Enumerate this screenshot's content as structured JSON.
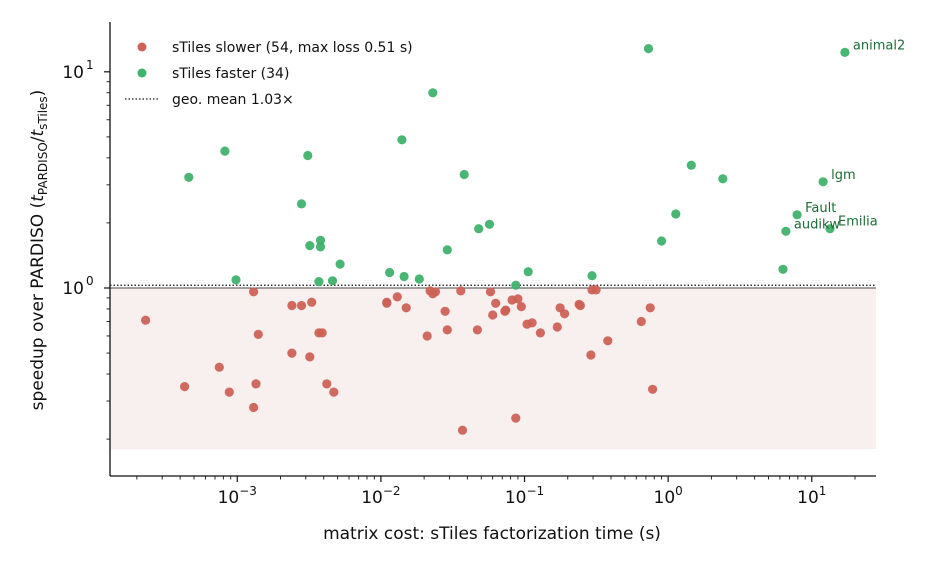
{
  "chart_data": {
    "type": "scatter",
    "x_scale": "log",
    "y_scale": "log",
    "xlabel": "matrix cost: sTiles factorization time (s)",
    "ylabel_main": "speedup over PARDISO (",
    "ylabel_t1": "t",
    "ylabel_sub1": "PARDISO",
    "ylabel_slash": "/",
    "ylabel_t2": "t",
    "ylabel_sub2": "sTiles",
    "ylabel_close": ")",
    "xlim": [
      0.00013,
      28
    ],
    "ylim": [
      0.135,
      17
    ],
    "x_ticks": [
      {
        "value": 0.001,
        "base": "10",
        "exp": "−3"
      },
      {
        "value": 0.01,
        "base": "10",
        "exp": "−2"
      },
      {
        "value": 0.1,
        "base": "10",
        "exp": "−1"
      },
      {
        "value": 1,
        "base": "10",
        "exp": "0"
      },
      {
        "value": 10,
        "base": "10",
        "exp": "1"
      }
    ],
    "y_ticks": [
      {
        "value": 1,
        "base": "10",
        "exp": "0"
      },
      {
        "value": 10,
        "base": "10",
        "exp": "1"
      }
    ],
    "reference_line": {
      "value": 1.03,
      "label": "geo. mean 1.03×",
      "style": "dotted"
    },
    "baseline": 1,
    "shaded_region": {
      "y_from": 0.18,
      "y_to": 1.0,
      "color": "#f8efef"
    },
    "legend_position": "top-left",
    "series": [
      {
        "name": "sTiles slower (54, max loss 0.51 s)",
        "color": "#cd6155",
        "points": [
          [
            0.00023,
            0.71
          ],
          [
            0.00043,
            0.35
          ],
          [
            0.00075,
            0.43
          ],
          [
            0.00088,
            0.33
          ],
          [
            0.0013,
            0.96
          ],
          [
            0.0013,
            0.28
          ],
          [
            0.00135,
            0.36
          ],
          [
            0.0014,
            0.61
          ],
          [
            0.0024,
            0.5
          ],
          [
            0.0024,
            0.83
          ],
          [
            0.0028,
            0.83
          ],
          [
            0.0032,
            0.48
          ],
          [
            0.0033,
            0.86
          ],
          [
            0.0037,
            0.62
          ],
          [
            0.0039,
            0.62
          ],
          [
            0.0042,
            0.36
          ],
          [
            0.0047,
            0.33
          ],
          [
            0.011,
            0.86
          ],
          [
            0.011,
            0.85
          ],
          [
            0.013,
            0.91
          ],
          [
            0.015,
            0.81
          ],
          [
            0.021,
            0.6
          ],
          [
            0.022,
            0.97
          ],
          [
            0.023,
            0.94
          ],
          [
            0.024,
            0.96
          ],
          [
            0.028,
            0.78
          ],
          [
            0.029,
            0.64
          ],
          [
            0.036,
            0.97
          ],
          [
            0.037,
            0.22
          ],
          [
            0.047,
            0.64
          ],
          [
            0.058,
            0.96
          ],
          [
            0.06,
            0.75
          ],
          [
            0.063,
            0.85
          ],
          [
            0.073,
            0.78
          ],
          [
            0.074,
            0.79
          ],
          [
            0.082,
            0.88
          ],
          [
            0.087,
            0.25
          ],
          [
            0.09,
            0.89
          ],
          [
            0.095,
            0.82
          ],
          [
            0.104,
            0.68
          ],
          [
            0.113,
            0.69
          ],
          [
            0.129,
            0.62
          ],
          [
            0.169,
            0.66
          ],
          [
            0.177,
            0.81
          ],
          [
            0.19,
            0.76
          ],
          [
            0.24,
            0.84
          ],
          [
            0.245,
            0.83
          ],
          [
            0.29,
            0.49
          ],
          [
            0.295,
            0.98
          ],
          [
            0.315,
            0.98
          ],
          [
            0.38,
            0.57
          ],
          [
            0.65,
            0.7
          ],
          [
            0.75,
            0.81
          ],
          [
            0.78,
            0.34
          ]
        ]
      },
      {
        "name": "sTiles faster (34)",
        "color": "#3fb26c",
        "points": [
          [
            0.00046,
            3.25
          ],
          [
            0.00082,
            4.3
          ],
          [
            0.00098,
            1.09
          ],
          [
            0.0028,
            2.45
          ],
          [
            0.0031,
            4.1
          ],
          [
            0.0032,
            1.57
          ],
          [
            0.0037,
            1.07
          ],
          [
            0.0038,
            1.66
          ],
          [
            0.0038,
            1.55
          ],
          [
            0.0046,
            1.08
          ],
          [
            0.0052,
            1.29
          ],
          [
            0.0115,
            1.18
          ],
          [
            0.014,
            4.85
          ],
          [
            0.0145,
            1.13
          ],
          [
            0.0185,
            1.1
          ],
          [
            0.023,
            8.0
          ],
          [
            0.038,
            3.35
          ],
          [
            0.029,
            1.5
          ],
          [
            0.048,
            1.88
          ],
          [
            0.057,
            1.97
          ],
          [
            0.087,
            1.03
          ],
          [
            0.106,
            1.19
          ],
          [
            0.295,
            1.14
          ],
          [
            0.73,
            12.8
          ],
          [
            0.9,
            1.65
          ],
          [
            1.13,
            2.2
          ],
          [
            1.45,
            3.7
          ],
          [
            2.4,
            3.2
          ],
          [
            6.3,
            1.22
          ],
          [
            6.6,
            1.83
          ],
          [
            7.9,
            2.18
          ],
          [
            12.0,
            3.1
          ],
          [
            13.4,
            1.88
          ],
          [
            17.0,
            12.3
          ]
        ]
      }
    ],
    "annotations": [
      {
        "text": "animal2",
        "x": 17.0,
        "y": 12.3
      },
      {
        "text": "lgm",
        "x": 12.0,
        "y": 3.1
      },
      {
        "text": "Fault",
        "x": 7.9,
        "y": 2.18
      },
      {
        "text": "audikw",
        "x": 6.6,
        "y": 1.83
      },
      {
        "text": "Emilia",
        "x": 13.4,
        "y": 1.88
      }
    ]
  }
}
